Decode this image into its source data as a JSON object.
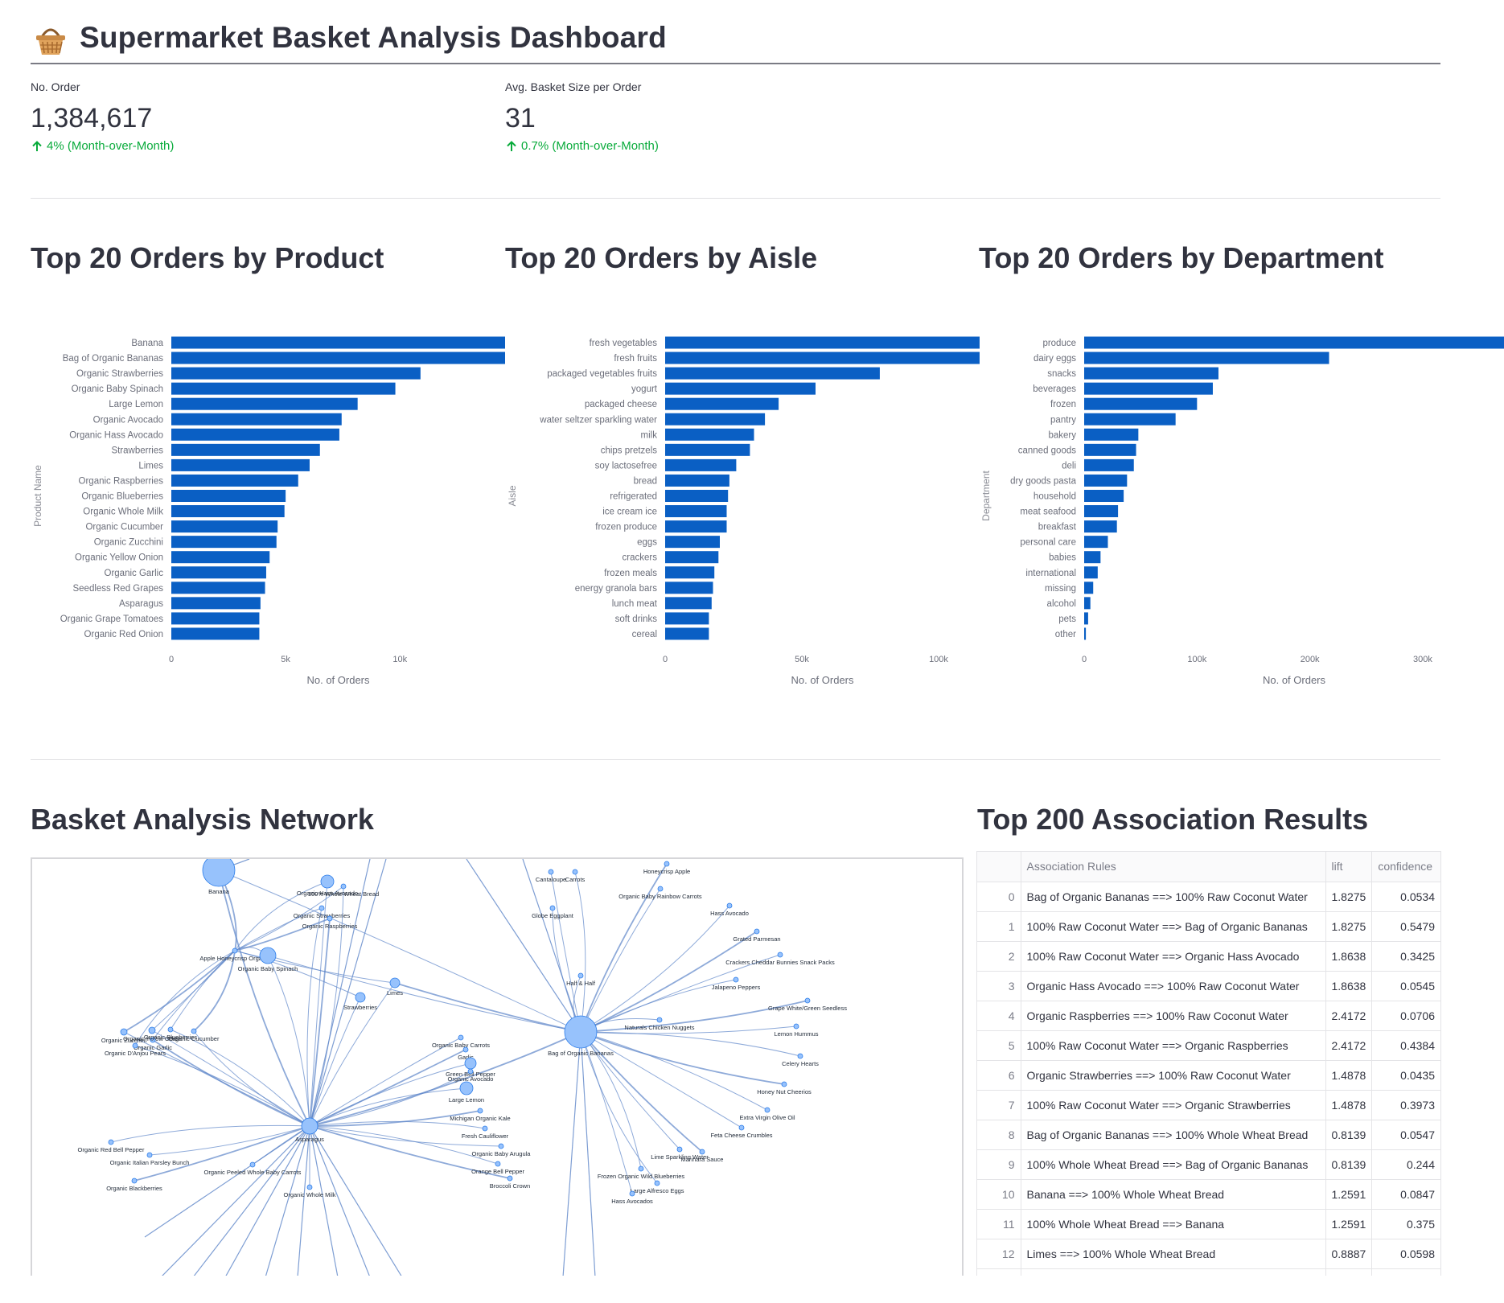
{
  "app": {
    "title": "Supermarket Basket Analysis Dashboard",
    "icon": "basket-icon"
  },
  "metrics": [
    {
      "label": "No. Order",
      "value": "1,384,617",
      "delta": "4% (Month-over-Month)"
    },
    {
      "label": "Avg. Basket Size per Order",
      "value": "31",
      "delta": "0.7% (Month-over-Month)"
    }
  ],
  "colors": {
    "bar": "#0a5fc4",
    "delta_positive": "#09ab3b",
    "network_node": "#97c2fc",
    "network_edge": "#5e86c9"
  },
  "sections": {
    "product_title": "Top 20 Orders by Product",
    "aisle_title": "Top 20 Orders by Aisle",
    "department_title": "Top 20 Orders by Department",
    "network_title": "Basket Analysis Network",
    "association_title": "Top 200 Association Results"
  },
  "chart_data": [
    {
      "type": "bar",
      "orientation": "horizontal",
      "title": "Top 20 Orders by Product",
      "xlabel": "No. of Orders",
      "ylabel": "Product Name",
      "xlim": [
        0,
        14600
      ],
      "xticks": [
        {
          "value": 0,
          "label": "0"
        },
        {
          "value": 5000,
          "label": "5k"
        },
        {
          "value": 10000,
          "label": "10k"
        }
      ],
      "categories": [
        "Banana",
        "Bag of Organic Bananas",
        "Organic Strawberries",
        "Organic Baby Spinach",
        "Large Lemon",
        "Organic Avocado",
        "Organic Hass Avocado",
        "Strawberries",
        "Limes",
        "Organic Raspberries",
        "Organic Blueberries",
        "Organic Whole Milk",
        "Organic Cucumber",
        "Organic Zucchini",
        "Organic Yellow Onion",
        "Organic Garlic",
        "Seedless Red Grapes",
        "Asparagus",
        "Organic Grape Tomatoes",
        "Organic Red Onion"
      ],
      "values": [
        14600,
        14600,
        10900,
        9800,
        8150,
        7450,
        7350,
        6500,
        6050,
        5550,
        5000,
        4950,
        4650,
        4600,
        4300,
        4150,
        4100,
        3900,
        3850,
        3850
      ]
    },
    {
      "type": "bar",
      "orientation": "horizontal",
      "title": "Top 20 Orders by Aisle",
      "xlabel": "No. of Orders",
      "ylabel": "Aisle",
      "xlim": [
        0,
        115000
      ],
      "xticks": [
        {
          "value": 0,
          "label": "0"
        },
        {
          "value": 50000,
          "label": "50k"
        },
        {
          "value": 100000,
          "label": "100k"
        }
      ],
      "categories": [
        "fresh vegetables",
        "fresh fruits",
        "packaged vegetables fruits",
        "yogurt",
        "packaged cheese",
        "water seltzer sparkling water",
        "milk",
        "chips pretzels",
        "soy lactosefree",
        "bread",
        "refrigerated",
        "ice cream ice",
        "frozen produce",
        "eggs",
        "crackers",
        "frozen meals",
        "energy granola bars",
        "lunch meat",
        "soft drinks",
        "cereal"
      ],
      "values": [
        115000,
        115000,
        78500,
        55000,
        41500,
        36500,
        32500,
        31000,
        26000,
        23500,
        23000,
        22500,
        22500,
        20000,
        19500,
        18000,
        17500,
        17000,
        16000,
        16000
      ]
    },
    {
      "type": "bar",
      "orientation": "horizontal",
      "title": "Top 20 Orders by Department",
      "xlabel": "No. of Orders",
      "ylabel": "Department",
      "xlim": [
        0,
        372000
      ],
      "xticks": [
        {
          "value": 0,
          "label": "0"
        },
        {
          "value": 100000,
          "label": "100k"
        },
        {
          "value": 200000,
          "label": "200k"
        },
        {
          "value": 300000,
          "label": "300k"
        }
      ],
      "categories": [
        "produce",
        "dairy eggs",
        "snacks",
        "beverages",
        "frozen",
        "pantry",
        "bakery",
        "canned goods",
        "deli",
        "dry goods pasta",
        "household",
        "meat seafood",
        "breakfast",
        "personal care",
        "babies",
        "international",
        "missing",
        "alcohol",
        "pets",
        "other"
      ],
      "values": [
        372000,
        217000,
        119000,
        114000,
        100000,
        81000,
        48000,
        46000,
        44000,
        38000,
        35000,
        30000,
        29000,
        21000,
        14500,
        12000,
        8000,
        5500,
        3500,
        1500
      ]
    }
  ],
  "network": {
    "labels": [
      "Banana",
      "Organic Hass Avocado",
      "100% Whole Wheat Bread",
      "Organic Strawberries",
      "Organic Raspberries",
      "Apple Honeycrisp Organic",
      "Organic Baby Spinach",
      "Limes",
      "Strawberries",
      "Organic Zucchini",
      "Organic Yellow Onion",
      "Organic Garlic",
      "Organic Blueberries",
      "Organic Cucumber",
      "Organic D'Anjou Pears",
      "Cantaloupe",
      "Carrots",
      "Honeycrisp Apple",
      "Organic Baby Rainbow Carrots",
      "Hass Avocado",
      "Globe Eggplant",
      "Grated Parmesan",
      "Crackers Cheddar Bunnies Snack Packs",
      "Half & Half",
      "Jalapeno Peppers",
      "Grape White/Green Seedless",
      "Naturals Chicken Nuggets",
      "Bag of Organic Bananas",
      "Lemon Hummus",
      "Organic Baby Carrots",
      "Celery Hearts",
      "Garlic",
      "Green Bell Pepper",
      "Organic Avocado",
      "Honey Nut Cheerios",
      "Large Lemon",
      "Michigan Organic Kale",
      "Extra Virgin Olive Oil",
      "Fresh Cauliflower",
      "Feta Cheese Crumbles",
      "Organic Baby Arugula",
      "Asparagus",
      "Organic Red Bell Pepper",
      "Organic Italian Parsley Bunch",
      "Organic Peeled Whole Baby Carrots",
      "Lime Sparkling Water",
      "Marinara Sauce",
      "Orange Bell Pepper",
      "Broccoli Crown",
      "Organic Blackberries",
      "Organic Whole Milk",
      "Frozen Organic Wild Blueberries",
      "Large Alfresco Eggs",
      "Hass Avocados"
    ]
  },
  "association": {
    "columns": [
      "",
      "Association Rules",
      "lift",
      "confidence"
    ],
    "rows": [
      {
        "idx": "0",
        "rule": "Bag of Organic Bananas ==> 100% Raw Coconut Water",
        "lift": "1.8275",
        "confidence": "0.0534"
      },
      {
        "idx": "1",
        "rule": "100% Raw Coconut Water ==> Bag of Organic Bananas",
        "lift": "1.8275",
        "confidence": "0.5479"
      },
      {
        "idx": "2",
        "rule": "100% Raw Coconut Water ==> Organic Hass Avocado",
        "lift": "1.8638",
        "confidence": "0.3425"
      },
      {
        "idx": "3",
        "rule": "Organic Hass Avocado ==> 100% Raw Coconut Water",
        "lift": "1.8638",
        "confidence": "0.0545"
      },
      {
        "idx": "4",
        "rule": "Organic Raspberries ==> 100% Raw Coconut Water",
        "lift": "2.4172",
        "confidence": "0.0706"
      },
      {
        "idx": "5",
        "rule": "100% Raw Coconut Water ==> Organic Raspberries",
        "lift": "2.4172",
        "confidence": "0.4384"
      },
      {
        "idx": "6",
        "rule": "Organic Strawberries ==> 100% Raw Coconut Water",
        "lift": "1.4878",
        "confidence": "0.0435"
      },
      {
        "idx": "7",
        "rule": "100% Raw Coconut Water ==> Organic Strawberries",
        "lift": "1.4878",
        "confidence": "0.3973"
      },
      {
        "idx": "8",
        "rule": "Bag of Organic Bananas ==> 100% Whole Wheat Bread",
        "lift": "0.8139",
        "confidence": "0.0547"
      },
      {
        "idx": "9",
        "rule": "100% Whole Wheat Bread ==> Bag of Organic Bananas",
        "lift": "0.8139",
        "confidence": "0.244"
      },
      {
        "idx": "10",
        "rule": "Banana ==> 100% Whole Wheat Bread",
        "lift": "1.2591",
        "confidence": "0.0847"
      },
      {
        "idx": "11",
        "rule": "100% Whole Wheat Bread ==> Banana",
        "lift": "1.2591",
        "confidence": "0.375"
      },
      {
        "idx": "12",
        "rule": "Limes ==> 100% Whole Wheat Bread",
        "lift": "0.8887",
        "confidence": "0.0598"
      },
      {
        "idx": "",
        "rule": "",
        "lift": "",
        "confidence": ""
      }
    ]
  }
}
